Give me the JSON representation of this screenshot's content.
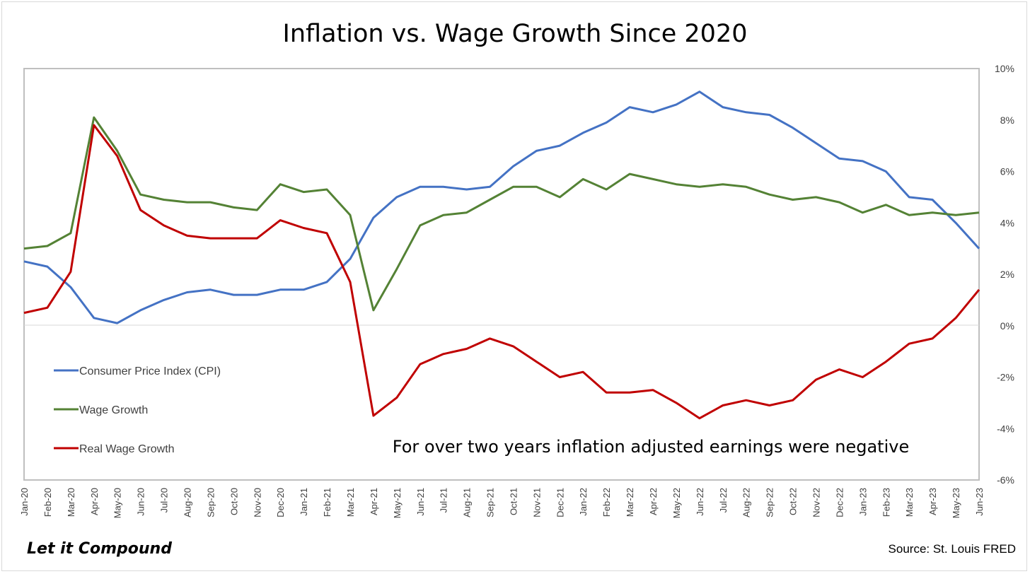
{
  "chart_data": {
    "type": "line",
    "title": "Inflation vs. Wage Growth Since 2020",
    "x": [
      "Jan-20",
      "Feb-20",
      "Mar-20",
      "Apr-20",
      "May-20",
      "Jun-20",
      "Jul-20",
      "Aug-20",
      "Sep-20",
      "Oct-20",
      "Nov-20",
      "Dec-20",
      "Jan-21",
      "Feb-21",
      "Mar-21",
      "Apr-21",
      "May-21",
      "Jun-21",
      "Jul-21",
      "Aug-21",
      "Sep-21",
      "Oct-21",
      "Nov-21",
      "Dec-21",
      "Jan-22",
      "Feb-22",
      "Mar-22",
      "Apr-22",
      "May-22",
      "Jun-22",
      "Jul-22",
      "Aug-22",
      "Sep-22",
      "Oct-22",
      "Nov-22",
      "Dec-22",
      "Jan-23",
      "Feb-23",
      "Mar-23",
      "Apr-23",
      "May-23",
      "Jun-23"
    ],
    "y_ticks": [
      10,
      8,
      6,
      4,
      2,
      0,
      -2,
      -4,
      -6
    ],
    "y_tick_labels": [
      "10%",
      "8%",
      "6%",
      "4%",
      "2%",
      "0%",
      "-2%",
      "-4%",
      "-6%"
    ],
    "ylim": [
      -6,
      10
    ],
    "y_axis_side": "right",
    "series": [
      {
        "name": "Consumer Price Index (CPI)",
        "color": "#4472c4",
        "values": [
          2.5,
          2.3,
          1.5,
          0.3,
          0.1,
          0.6,
          1.0,
          1.3,
          1.4,
          1.2,
          1.2,
          1.4,
          1.4,
          1.7,
          2.6,
          4.2,
          5.0,
          5.4,
          5.4,
          5.3,
          5.4,
          6.2,
          6.8,
          7.0,
          7.5,
          7.9,
          8.5,
          8.3,
          8.6,
          9.1,
          8.5,
          8.3,
          8.2,
          7.7,
          7.1,
          6.5,
          6.4,
          6.0,
          5.0,
          4.9,
          4.0,
          3.0
        ]
      },
      {
        "name": "Wage Growth",
        "color": "#548235",
        "values": [
          3.0,
          3.1,
          3.6,
          8.1,
          6.8,
          5.1,
          4.9,
          4.8,
          4.8,
          4.6,
          4.5,
          5.5,
          5.2,
          5.3,
          4.3,
          0.6,
          2.2,
          3.9,
          4.3,
          4.4,
          4.9,
          5.4,
          5.4,
          5.0,
          5.7,
          5.3,
          5.9,
          5.7,
          5.5,
          5.4,
          5.5,
          5.4,
          5.1,
          4.9,
          5.0,
          4.8,
          4.4,
          4.7,
          4.3,
          4.4,
          4.3,
          4.4
        ]
      },
      {
        "name": "Real Wage Growth",
        "color": "#c00000",
        "values": [
          0.5,
          0.7,
          2.1,
          7.8,
          6.6,
          4.5,
          3.9,
          3.5,
          3.4,
          3.4,
          3.4,
          4.1,
          3.8,
          3.6,
          1.7,
          -3.5,
          -2.8,
          -1.5,
          -1.1,
          -0.9,
          -0.5,
          -0.8,
          -1.4,
          -2.0,
          -1.8,
          -2.6,
          -2.6,
          -2.5,
          -3.0,
          -3.6,
          -3.1,
          -2.9,
          -3.1,
          -2.9,
          -2.1,
          -1.7,
          -2.0,
          -1.4,
          -0.7,
          -0.5,
          0.3,
          1.4
        ]
      }
    ],
    "legend": [
      "Consumer Price Index (CPI)",
      "Wage Growth",
      "Real Wage Growth"
    ],
    "legend_placement": "bottom-left",
    "annotation": "For over two years inflation adjusted earnings were negative",
    "zero_line": true,
    "grid": false
  },
  "footer": {
    "brand": "Let it Compound",
    "source": "Source: St. Louis FRED"
  }
}
